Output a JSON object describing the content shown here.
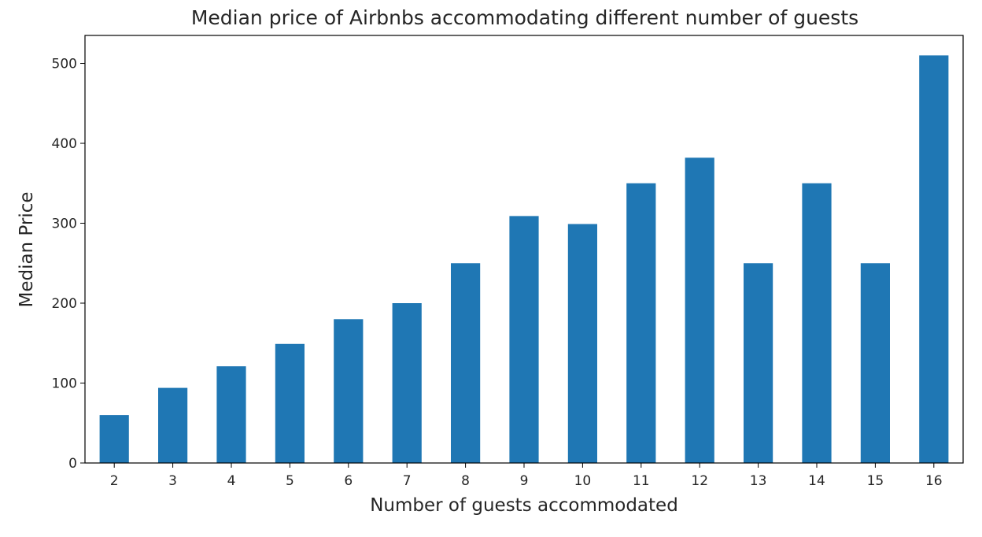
{
  "chart_data": {
    "type": "bar",
    "title": "Median price of Airbnbs accommodating different number of guests",
    "xlabel": "Number of guests accommodated",
    "ylabel": "Median Price",
    "categories": [
      "2",
      "3",
      "4",
      "5",
      "6",
      "7",
      "8",
      "9",
      "10",
      "11",
      "12",
      "13",
      "14",
      "15",
      "16"
    ],
    "values": [
      60,
      94,
      121,
      149,
      180,
      200,
      250,
      309,
      299,
      350,
      382,
      250,
      350,
      250,
      510
    ],
    "yticks": [
      0,
      100,
      200,
      300,
      400,
      500
    ],
    "ylim": [
      0,
      535
    ],
    "bar_color": "#1f77b4",
    "legend": "none",
    "grid": false
  }
}
